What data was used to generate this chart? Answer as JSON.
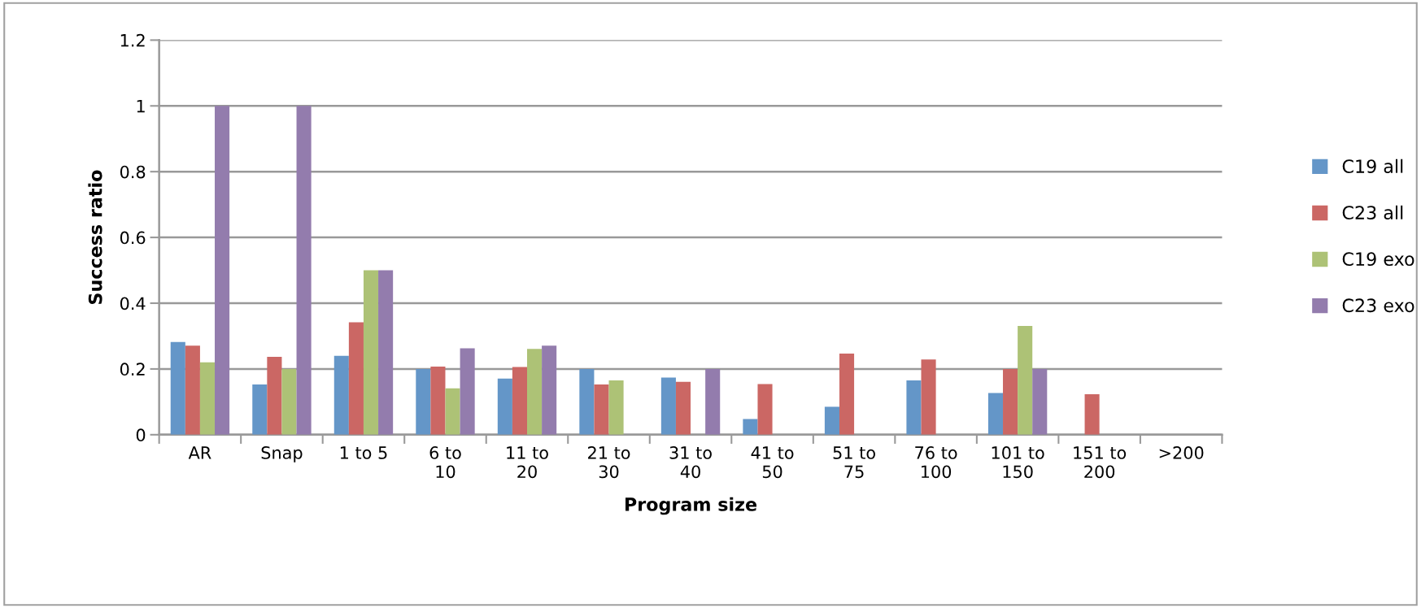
{
  "chart_data": {
    "type": "bar",
    "xlabel": "Program size",
    "ylabel": "Success ratio",
    "categories": [
      "AR",
      "Snap",
      "1 to 5",
      "6 to\n10",
      "11 to\n20",
      "21 to\n30",
      "31 to\n40",
      "41 to\n50",
      "51 to\n75",
      "76 to\n100",
      "101 to\n150",
      "151 to\n200",
      ">200"
    ],
    "series": [
      {
        "name": "C19 all",
        "color": "#6496c8",
        "values": [
          0.282,
          0.153,
          0.24,
          0.2,
          0.171,
          0.2,
          0.174,
          0.048,
          0.085,
          0.165,
          0.127,
          0,
          0
        ]
      },
      {
        "name": "C23 all",
        "color": "#cb6764",
        "values": [
          0.271,
          0.237,
          0.342,
          0.207,
          0.206,
          0.153,
          0.161,
          0.154,
          0.247,
          0.229,
          0.2,
          0.123,
          0
        ]
      },
      {
        "name": "C19 exo",
        "color": "#adc276",
        "values": [
          0.22,
          0.2,
          0.5,
          0.141,
          0.261,
          0.165,
          0,
          0,
          0,
          0,
          0.331,
          0,
          0
        ]
      },
      {
        "name": "C23 exo",
        "color": "#937cad",
        "values": [
          1,
          1,
          0.5,
          0.263,
          0.271,
          0,
          0.2,
          0,
          0,
          0,
          0.2,
          0,
          0
        ]
      }
    ],
    "ylim": [
      0,
      1.2
    ],
    "yticks": [
      0,
      0.2,
      0.4,
      0.6,
      0.8,
      1,
      1.2
    ],
    "grid": "y",
    "legend": "right"
  }
}
